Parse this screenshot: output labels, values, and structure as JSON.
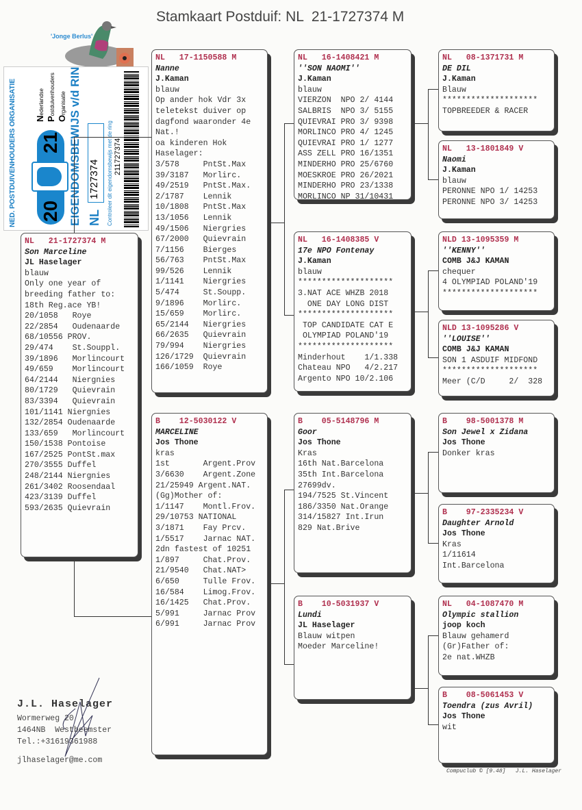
{
  "title": "Stamkaart Postduif: NL  21-1727374 M",
  "photo": {
    "caption": "'Jonge Berlus'"
  },
  "ring_card": {
    "organisation": "NED. POSTDUIVENHOUDERS ORGANISATIE",
    "year_left": "20",
    "year_right": "21",
    "heading": "EIGENDOMSBEWIJS v/d RING",
    "country": "NL",
    "ring_number": "1727374",
    "barcode_number": "211727374",
    "control_text": "Controleer dit eigendomsbewijs met de ring",
    "npo_letters": [
      "N",
      "P",
      "O"
    ],
    "npo_words": [
      "ederlandse",
      "ostduivenhouders",
      "rganisatie"
    ]
  },
  "pedigree": {
    "main": {
      "header": "NL   21-1727374 M",
      "name": "Son Marceline",
      "owner": "JL Haselager",
      "color": "blauw",
      "lines": [
        "Only one year of",
        "breeding father to:",
        "18th Reg.ace YB!",
        "20/1058   Roye",
        "22/2854   Oudenaarde",
        "68/10556 PROV.",
        "29/474    St.Souppl.",
        "39/1896   Morlincourt",
        "49/659    Morlincourt",
        "64/2144   Niergnies",
        "80/1729   Quievrain",
        "83/3394   Quievrain",
        "101/1141 Niergnies",
        "132/2854 Oudenaarde",
        "133/659   Morlincourt",
        "150/1538 Pontoise",
        "167/2525 PontSt.max",
        "270/3555 Duffel",
        "248/2144 Niergnies",
        "261/3402 Roosendaal",
        "423/3139 Duffel",
        "593/2635 Quievrain"
      ]
    },
    "father": {
      "header": "NL   17-1150588 M",
      "name": "Nanne",
      "owner": "J.Kaman",
      "color": "blauw",
      "lines": [
        "Op ander hok Vdr 3x",
        "teletekst duiver op",
        "dagfond waaronder 4e",
        "Nat.!",
        "oa kinderen Hok",
        "Haselager:",
        "3/578     PntSt.Max",
        "39/3187   Morlirc.",
        "49/2519   PntSt.Max.",
        "2/1787    Lennik",
        "10/1808   PntSt.Max",
        "13/1056   Lennik",
        "49/1506   Niergries",
        "67/2000   Quievrain",
        "7/1156    Bierges",
        "56/763    PntSt.Max",
        "99/526    Lennik",
        "1/1141    Niergries",
        "5/474     St.Soupp.",
        "9/1896    Morlirc.",
        "15/659    Morlirc.",
        "65/2144   Niergries",
        "66/2635   Quievrain",
        "79/994    Niergries",
        "126/1729  Quievrain",
        "166/1059  Roye"
      ]
    },
    "mother": {
      "header": "B    12-5030122 V",
      "name": "MARCELINE",
      "owner": "Jos Thone",
      "color": "kras",
      "lines": [
        "1st       Argent.Prov",
        "3/6630    Argent.Zone",
        "21/25949 Argent.NAT.",
        "(Gg)Mother of:",
        "1/1147    Montl.Frov.",
        "29/10753 NATIONAL",
        "3/1871    Fay Prcv.",
        "1/5517    Jarnac NAT.",
        "2dn fastest of 10251",
        "1/897     Chat.Prov.",
        "21/9540   Chat.NAT>",
        "6/650     Tulle Frov.",
        "16/584    Limog.Frov.",
        "16/1425   Chat.Prov.",
        "5/991     Jarnac Prov",
        "6/991     Jarnac Prov"
      ]
    },
    "ff": {
      "header": "NL   16-1408421 M",
      "name": "''SON NAOMI''",
      "owner": "J.Kaman",
      "color": "blauw",
      "lines": [
        "VIERZON  NPO 2/ 4144",
        "SALBRIS  NPO 3/ 5155",
        "QUIEVRAI PRO 3/ 9398",
        "MORLINCO PRO 4/ 1245",
        "QUIEVRAI PRO 1/ 1277",
        "ASS ZELL PRO 16/1351",
        "MINDERHO PRO 25/6760",
        "MOESKROE PRO 26/2021",
        "MINDERHO PRO 23/1338",
        "MORLINCO NP 31/10431"
      ]
    },
    "fm": {
      "header": "NL   16-1408385 V",
      "name": "17e NPO Fontenay",
      "owner": "J.Kaman",
      "color": "blauw",
      "lines": [
        "********************",
        "3.NAT ACE WHZB 2018",
        "  ONE DAY LONG DIST",
        "********************",
        " TOP CANDIDATE CAT E",
        " OLYMPIAD POLAND'19",
        "********************",
        "Minderhout    1/1.338",
        "Chateau NPO   4/2.217",
        "Argento NPO 10/2.106"
      ]
    },
    "mf": {
      "header": "B    05-5148796 M",
      "name": "Goor",
      "owner": "Jos Thone",
      "color": "Kras",
      "lines": [
        "16th Nat.Barcelona",
        "35th Int.Barcelona",
        "27699dv.",
        "194/7525 St.Vincent",
        "186/3350 Nat.Orange",
        "314/15827 Int.Irun",
        "829 Nat.Brive"
      ]
    },
    "mm": {
      "header": "B    10-5031937 V",
      "name": "Lundi",
      "owner": "JL Haselager",
      "color": "Blauw witpen",
      "lines": [
        "Moeder Marceline!"
      ]
    },
    "fff": {
      "header": "NL   08-1371731 M",
      "name": "DE DIL",
      "owner": "J.Kaman",
      "color": "Blauw",
      "lines": [
        "********************",
        "TOPBREEDER & RACER"
      ]
    },
    "ffm": {
      "header": "NL   13-1801849 V",
      "name": "Naomi",
      "owner": "J.Kaman",
      "color": "blauw",
      "lines": [
        "PERONNE NPO 1/ 14253",
        "PERONNE NPO 3/ 14253"
      ]
    },
    "fmf": {
      "header": "NLD 13-1095359 M",
      "name": "''KENNY''",
      "owner": "COMB J&J KAMAN",
      "color": "chequer",
      "lines": [
        "4 OLYMPIAD POLAND'19",
        "********************"
      ]
    },
    "fmm": {
      "header": "NLD 13-1095286 V",
      "name": "''LOUISE''",
      "owner": "COMB J&J KAMAN",
      "color": "SON 1 ASDUIF MIDFOND",
      "lines": [
        "********************",
        "Meer (C/D     2/  328"
      ]
    },
    "mff": {
      "header": "B    98-5001378 M",
      "name": "Son Jewel x Zidana",
      "owner": "Jos Thone",
      "color": "Donker kras",
      "lines": []
    },
    "mfm": {
      "header": "B    97-2335234 V",
      "name": "Daughter Arnold",
      "owner": "Jos Thone",
      "color": "Kras",
      "lines": [
        "1/11614",
        "Int.Barcelona"
      ]
    },
    "mmf": {
      "header": "NL   04-1087470 M",
      "name": "Olympic stallion",
      "owner": "joop koch",
      "color": "Blauw gehamerd",
      "lines": [
        "(Gr)Father of:",
        "2e nat.WHZB"
      ]
    },
    "mmm": {
      "header": "B    08-5061453 V",
      "name": "Toendra (zus Avril)",
      "owner": "Jos Thone",
      "color": "wit",
      "lines": []
    }
  },
  "breeder": {
    "name": "J.L. Haselager",
    "address": "Wormerweg 20",
    "city": "1464NB  Westbeemster",
    "phone": "Tel.:+31619361988",
    "email": "jlhaselager@me.com"
  },
  "footer": "Compuclub © [9.48]   J.L. Haselager",
  "colors": {
    "ring_header": "#b0304f",
    "ring_card_blue": "#1a86cc"
  }
}
